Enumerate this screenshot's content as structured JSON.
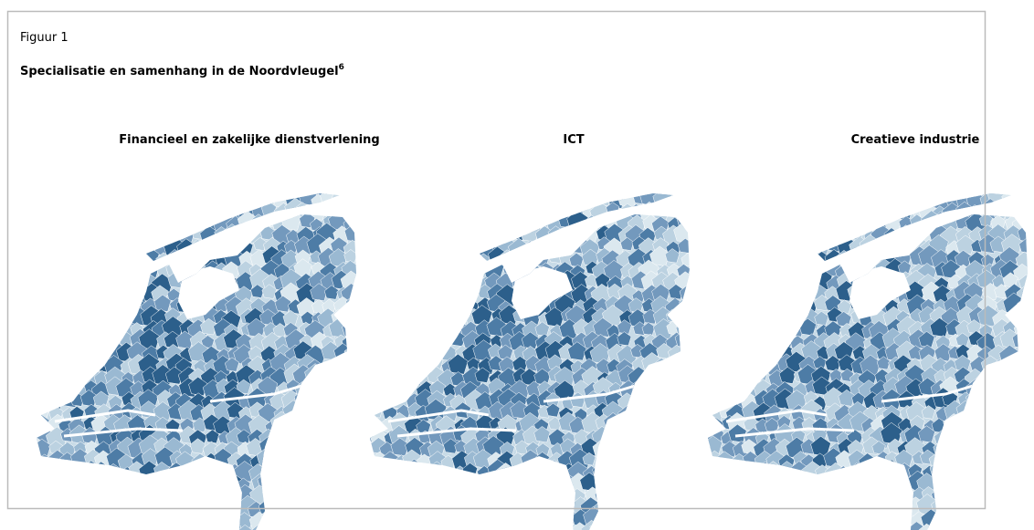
{
  "figure": {
    "label": "Figuur 1",
    "title": "Specialisatie en samenhang in de Noordvleugel",
    "footnote": "6",
    "maps": [
      {
        "title": "Financieel en zakelijke dienstverlening"
      },
      {
        "title": "ICT"
      },
      {
        "title": "Creatieve industrie"
      }
    ]
  }
}
